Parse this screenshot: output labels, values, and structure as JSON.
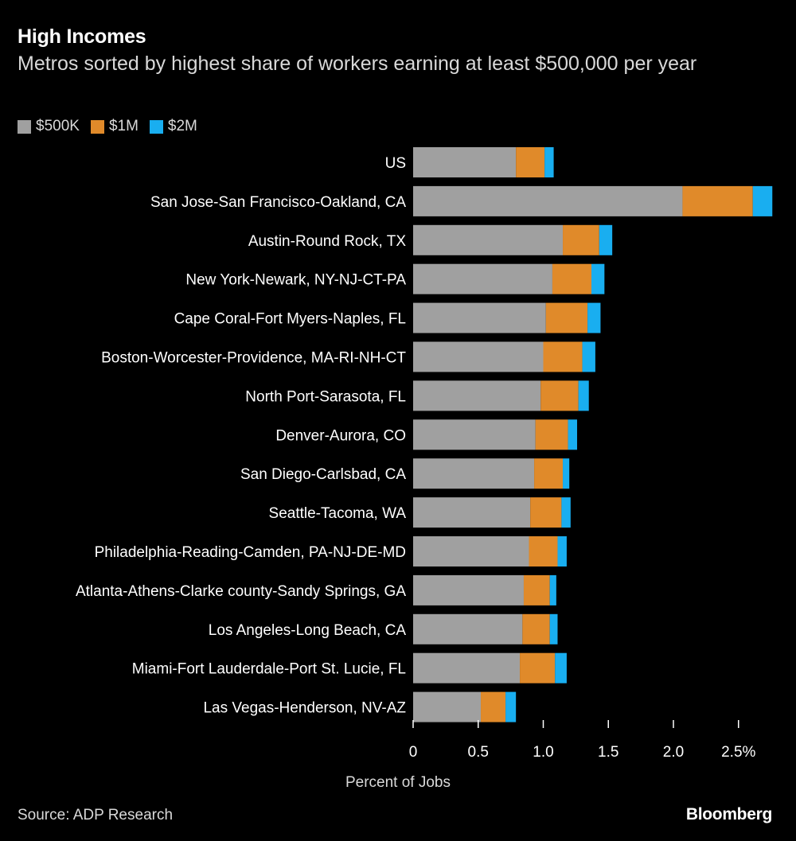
{
  "title": "High Incomes",
  "subtitle": "Metros sorted by highest share of workers earning at least $500,000 per year",
  "source": "Source: ADP Research",
  "brand": "Bloomberg",
  "colors": {
    "background": "#000000",
    "s500k": "#a0a0a0",
    "s1m": "#e08a2a",
    "s2m": "#19aef0",
    "axis": "#ffffff"
  },
  "legend": [
    {
      "label": "$500K",
      "color": "#a0a0a0"
    },
    {
      "label": "$1M",
      "color": "#e08a2a"
    },
    {
      "label": "$2M",
      "color": "#19aef0"
    }
  ],
  "chart_data": {
    "type": "bar",
    "orientation": "horizontal",
    "stacked": true,
    "title": "High Incomes",
    "xlabel": "Percent of Jobs",
    "ylabel": "",
    "xlim": [
      0,
      2.8
    ],
    "xticks": [
      {
        "value": 0,
        "label": "0"
      },
      {
        "value": 0.5,
        "label": "0.5"
      },
      {
        "value": 1.0,
        "label": "1.0"
      },
      {
        "value": 1.5,
        "label": "1.5"
      },
      {
        "value": 2.0,
        "label": "2.0"
      },
      {
        "value": 2.5,
        "label": "2.5%"
      }
    ],
    "categories": [
      "US",
      "San Jose-San Francisco-Oakland, CA",
      "Austin-Round Rock, TX",
      "New York-Newark, NY-NJ-CT-PA",
      "Cape Coral-Fort Myers-Naples, FL",
      "Boston-Worcester-Providence, MA-RI-NH-CT",
      "North Port-Sarasota, FL",
      "Denver-Aurora, CO",
      "San Diego-Carlsbad, CA",
      "Seattle-Tacoma, WA",
      "Philadelphia-Reading-Camden, PA-NJ-DE-MD",
      "Atlanta-Athens-Clarke county-Sandy Springs, GA",
      "Los Angeles-Long Beach, CA",
      "Miami-Fort Lauderdale-Port St. Lucie, FL",
      "Las Vegas-Henderson, NV-AZ"
    ],
    "series": [
      {
        "name": "$500K",
        "color": "#a0a0a0",
        "values": [
          0.79,
          2.07,
          1.15,
          1.07,
          1.02,
          1.0,
          0.98,
          0.94,
          0.93,
          0.9,
          0.89,
          0.85,
          0.84,
          0.82,
          0.52
        ]
      },
      {
        "name": "$1M",
        "color": "#e08a2a",
        "values": [
          0.22,
          0.54,
          0.28,
          0.3,
          0.32,
          0.3,
          0.29,
          0.25,
          0.22,
          0.24,
          0.22,
          0.2,
          0.21,
          0.27,
          0.19
        ]
      },
      {
        "name": "$2M",
        "color": "#19aef0",
        "values": [
          0.07,
          0.15,
          0.1,
          0.1,
          0.1,
          0.1,
          0.08,
          0.07,
          0.05,
          0.07,
          0.07,
          0.05,
          0.06,
          0.09,
          0.08
        ]
      }
    ]
  }
}
